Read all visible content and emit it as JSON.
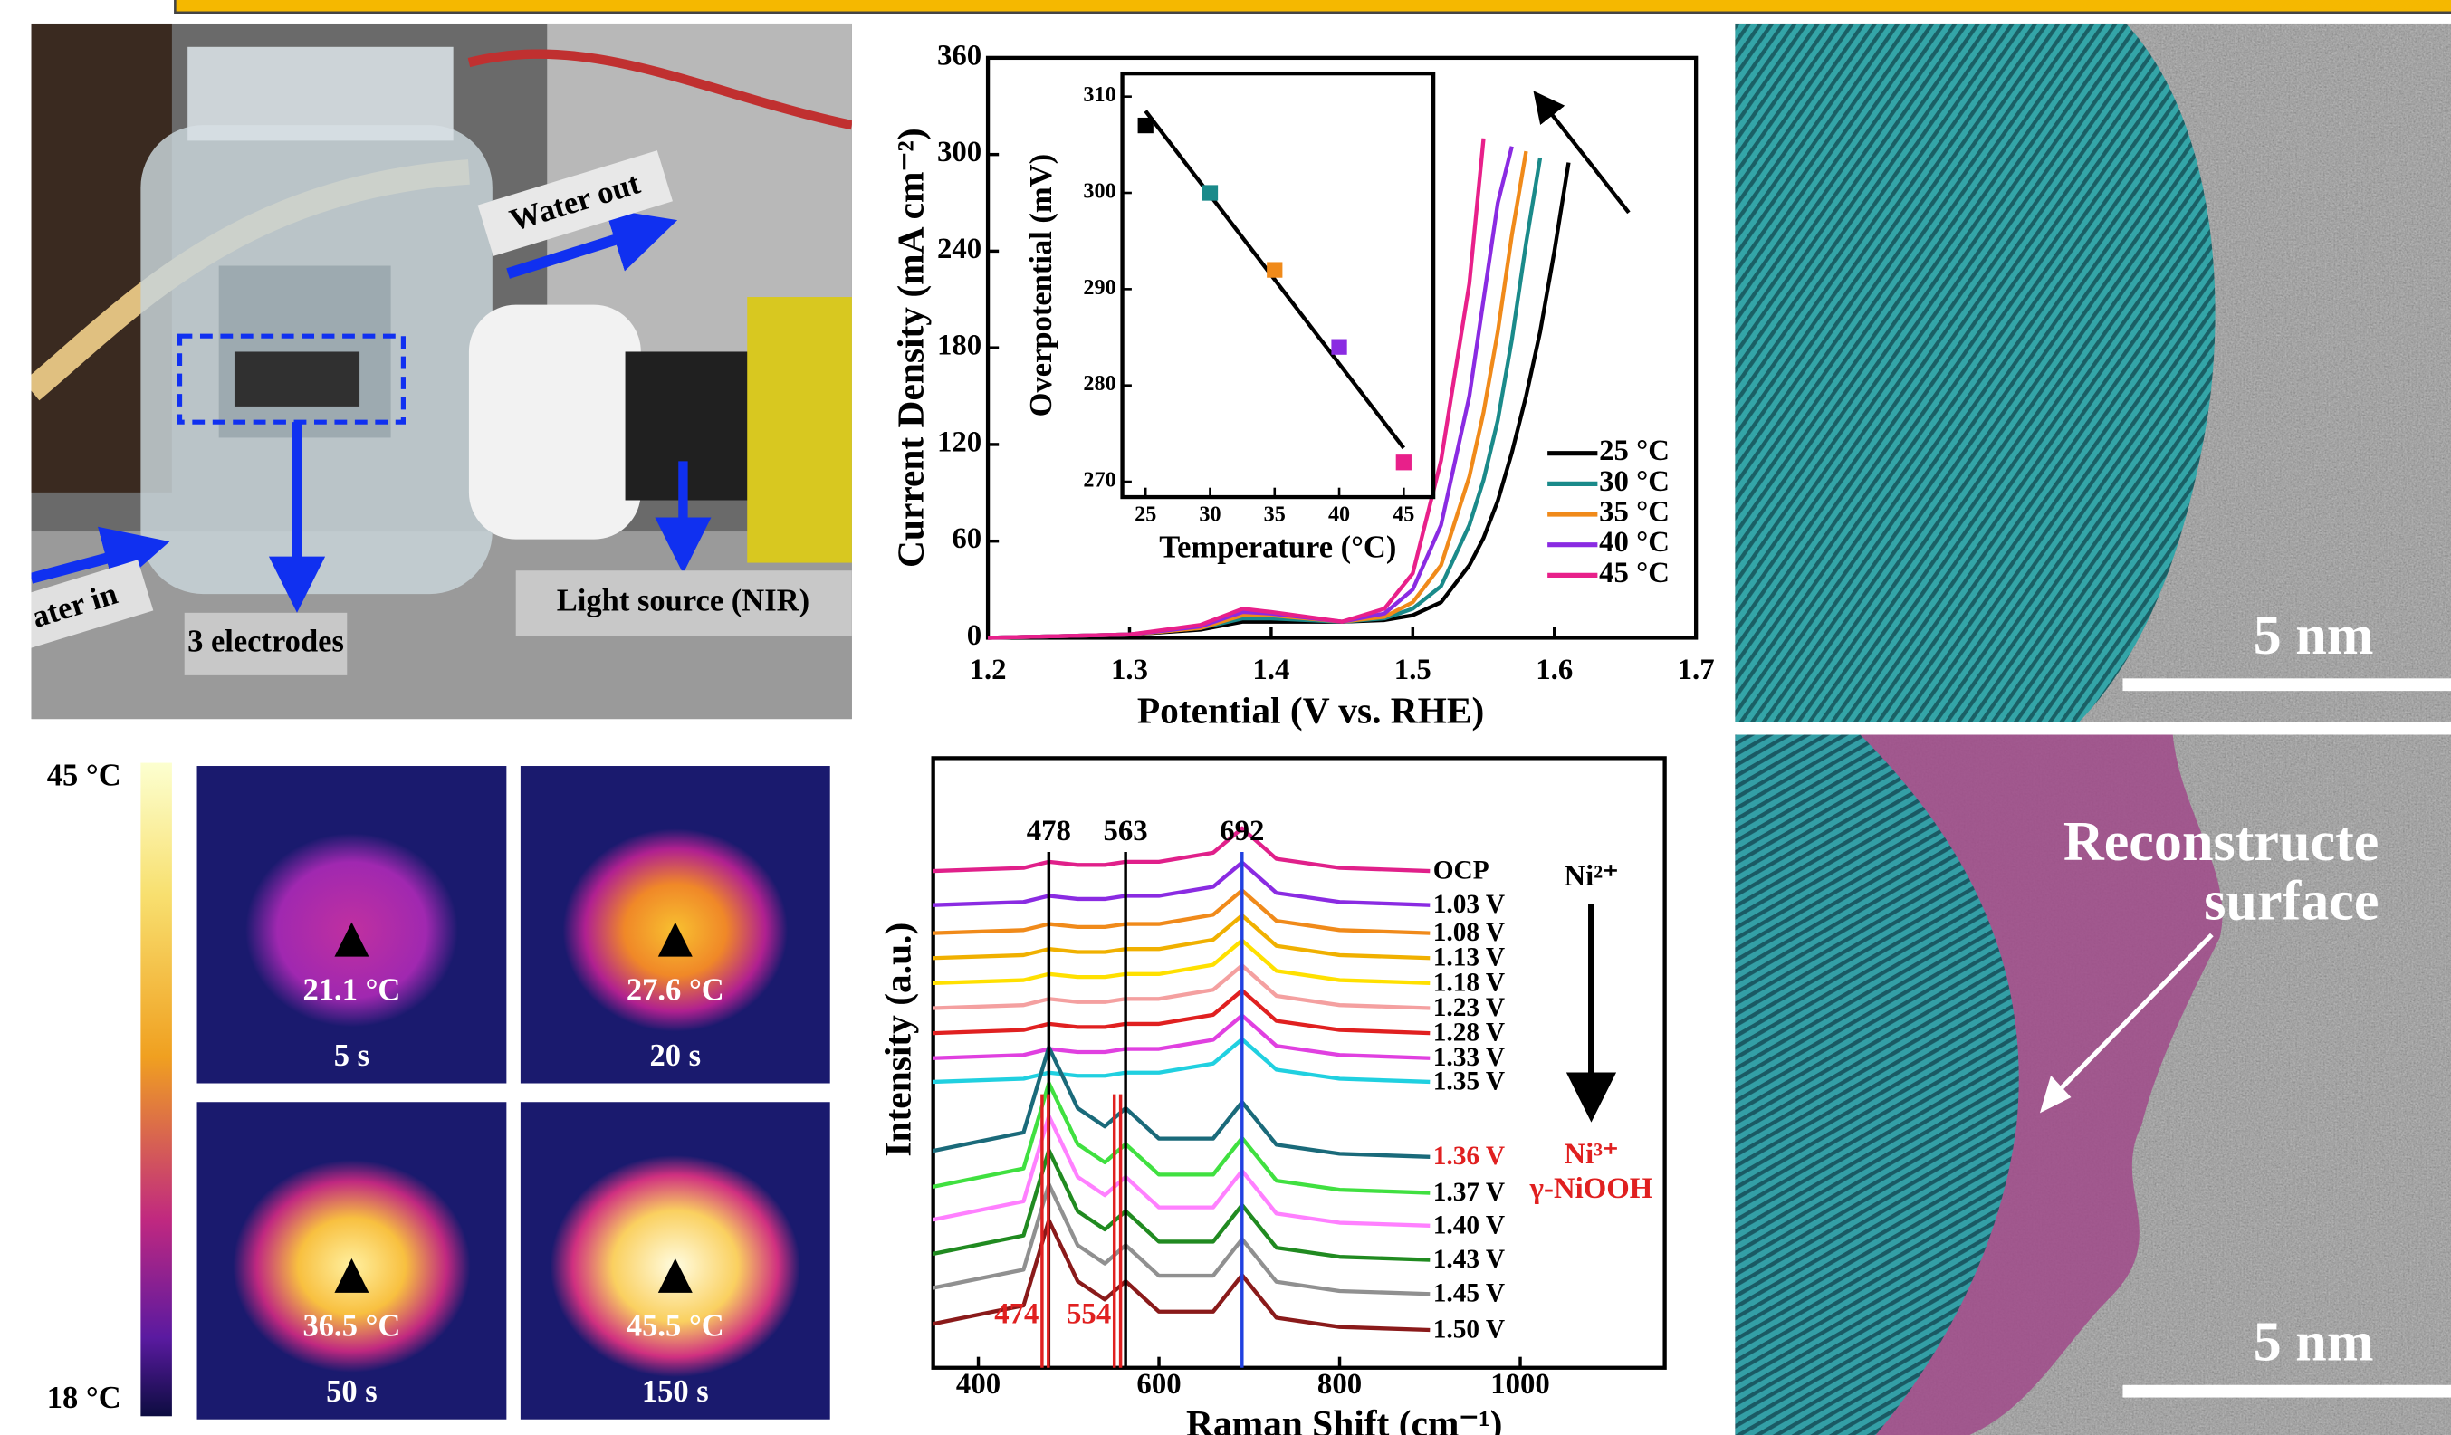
{
  "photo": {
    "labels": [
      "Water out",
      "3 electrodes",
      "Light source (NIR)",
      "ater in"
    ]
  },
  "chart_data": [
    {
      "type": "line",
      "xlabel": "Potential (V vs. RHE)",
      "ylabel": "Current Density (mA cm⁻²)",
      "x": [
        1.2,
        1.3,
        1.35,
        1.38,
        1.4,
        1.45,
        1.48,
        1.5,
        1.52,
        1.54,
        1.55,
        1.56,
        1.57,
        1.58,
        1.59,
        1.6,
        1.61
      ],
      "series": [
        {
          "name": "25 °C",
          "color": "#000000",
          "values": [
            0,
            2,
            5,
            10,
            10,
            10,
            11,
            14,
            22,
            45,
            62,
            85,
            115,
            150,
            190,
            240,
            295
          ]
        },
        {
          "name": "30 °C",
          "color": "#1a8a8a",
          "values": [
            0,
            2,
            6,
            12,
            12,
            10,
            12,
            18,
            32,
            70,
            98,
            135,
            185,
            245,
            298,
            null,
            null
          ]
        },
        {
          "name": "35 °C",
          "color": "#f08a1a",
          "values": [
            0,
            2,
            6,
            14,
            14,
            10,
            13,
            22,
            45,
            100,
            140,
            190,
            250,
            302,
            null,
            null,
            null
          ]
        },
        {
          "name": "40 °C",
          "color": "#8a2be2",
          "values": [
            0,
            2,
            7,
            16,
            15,
            10,
            15,
            30,
            70,
            150,
            210,
            270,
            305,
            null,
            null,
            null,
            null
          ]
        },
        {
          "name": "45 °C",
          "color": "#e8208a",
          "values": [
            0,
            2,
            8,
            18,
            16,
            10,
            18,
            40,
            110,
            220,
            310,
            null,
            null,
            null,
            null,
            null,
            null
          ]
        }
      ],
      "xlim": [
        1.2,
        1.7
      ],
      "ylim": [
        0,
        360
      ],
      "xticks": [
        1.2,
        1.3,
        1.4,
        1.5,
        1.6,
        1.7
      ],
      "yticks": [
        0,
        60,
        120,
        180,
        240,
        300,
        360
      ],
      "legend": "lower-right"
    },
    {
      "type": "scatter",
      "xlabel": "Temperature (°C)",
      "ylabel": "Overpotential (mV)",
      "x": [
        25,
        30,
        35,
        40,
        45
      ],
      "values": [
        307,
        300,
        292,
        284,
        272
      ],
      "colors": [
        "#000000",
        "#1a8a8a",
        "#f08a1a",
        "#8a2be2",
        "#e8208a"
      ],
      "trendline": {
        "x": [
          25,
          45
        ],
        "y": [
          308.5,
          273.5
        ]
      },
      "xlim": [
        23.2,
        47.3
      ],
      "ylim": [
        268.4,
        312.4
      ],
      "xticks": [
        25,
        30,
        35,
        40,
        45
      ],
      "yticks": [
        270,
        280,
        290,
        300,
        310
      ]
    },
    {
      "type": "line",
      "xlabel": "Raman Shift (cm⁻¹)",
      "ylabel": "Intensity (a.u.)",
      "x": [
        350,
        450,
        478,
        510,
        540,
        563,
        600,
        660,
        692,
        730,
        800,
        900
      ],
      "series": [
        {
          "name": "OCP",
          "color": "#e0208a",
          "values": [
            81.5,
            82,
            83,
            82.5,
            82.5,
            83,
            83,
            84.5,
            88.5,
            83.5,
            82,
            81.5
          ]
        },
        {
          "name": "1.03 V",
          "color": "#8a2be2",
          "values": [
            75.9,
            76.4,
            77.4,
            76.9,
            76.9,
            77.4,
            77.4,
            78.9,
            82.9,
            77.9,
            76.4,
            75.9
          ]
        },
        {
          "name": "1.08 V",
          "color": "#f08a1a",
          "values": [
            71.3,
            71.8,
            72.8,
            72.3,
            72.3,
            72.8,
            72.8,
            74.3,
            78.3,
            73.3,
            71.8,
            71.3
          ]
        },
        {
          "name": "1.13 V",
          "color": "#f0b000",
          "values": [
            67.2,
            67.7,
            68.7,
            68.2,
            68.2,
            68.7,
            68.7,
            70.2,
            74.2,
            69.2,
            67.7,
            67.2
          ]
        },
        {
          "name": "1.18 V",
          "color": "#ffe000",
          "values": [
            63.1,
            63.6,
            64.6,
            64.1,
            64.1,
            64.6,
            64.6,
            66.1,
            70.1,
            65.1,
            63.6,
            63.1
          ]
        },
        {
          "name": "1.23 V",
          "color": "#f4a0a0",
          "values": [
            59,
            59.5,
            60.5,
            60,
            60,
            60.5,
            60.5,
            62,
            66,
            61,
            59.5,
            59
          ]
        },
        {
          "name": "1.28 V",
          "color": "#e02020",
          "values": [
            54.9,
            55.4,
            56.4,
            55.9,
            55.9,
            56.4,
            56.4,
            57.9,
            61.9,
            56.9,
            55.4,
            54.9
          ]
        },
        {
          "name": "1.33 V",
          "color": "#e040e0",
          "values": [
            50.8,
            51.3,
            52.3,
            51.8,
            51.8,
            52.3,
            52.3,
            53.8,
            57.8,
            52.8,
            51.3,
            50.8
          ]
        },
        {
          "name": "1.35 V",
          "color": "#20d0e0",
          "values": [
            46.9,
            47.4,
            48.4,
            47.9,
            47.9,
            48.4,
            48.4,
            49.9,
            53.9,
            48.9,
            47.4,
            46.9
          ]
        },
        {
          "name": "1.36 V",
          "color": "#1a6a7a",
          "label_color": "#e02020",
          "values": [
            35.6,
            38.6,
            52.6,
            42.6,
            39.6,
            42.6,
            37.6,
            37.6,
            43.6,
            36.6,
            35.1,
            34.6
          ]
        },
        {
          "name": "1.37 V",
          "color": "#40e040",
          "values": [
            29.7,
            32.7,
            46.7,
            36.7,
            33.7,
            36.7,
            31.7,
            31.7,
            37.7,
            30.7,
            29.2,
            28.7
          ]
        },
        {
          "name": "1.40 V",
          "color": "#ff80ff",
          "values": [
            24.3,
            27.3,
            41.3,
            31.3,
            28.3,
            31.3,
            26.3,
            26.3,
            32.3,
            25.3,
            23.8,
            23.3
          ]
        },
        {
          "name": "1.43 V",
          "color": "#208a20",
          "values": [
            18.7,
            21.7,
            35.7,
            25.7,
            22.7,
            25.7,
            20.7,
            20.7,
            26.7,
            19.7,
            18.2,
            17.7
          ]
        },
        {
          "name": "1.45 V",
          "color": "#909090",
          "values": [
            13.1,
            16.1,
            30.1,
            20.1,
            17.1,
            20.1,
            15.1,
            15.1,
            21.1,
            14.1,
            12.6,
            12.1
          ]
        },
        {
          "name": "1.50 V",
          "color": "#8a1a1a",
          "values": [
            7.2,
            10.2,
            24.2,
            14.2,
            11.2,
            14.2,
            9.2,
            9.2,
            15.2,
            8.2,
            6.7,
            6.2
          ]
        }
      ],
      "reference_lines": [
        {
          "x": 478,
          "color": "#000000",
          "position": "top"
        },
        {
          "x": 563,
          "color": "#000000",
          "position": "top"
        },
        {
          "x": 692,
          "color": "#2040e0",
          "position": "top"
        },
        {
          "x": 474,
          "color": "#e02020",
          "position": "bottom"
        },
        {
          "x": 554,
          "color": "#e02020",
          "position": "bottom"
        }
      ],
      "annotations": {
        "start": "Ni²⁺",
        "end": [
          "Ni³⁺",
          "γ-NiOOH"
        ]
      },
      "xlim": [
        350,
        1160
      ],
      "ylim": [
        0,
        100
      ],
      "xticks": [
        400,
        600,
        800,
        1000
      ]
    }
  ],
  "thermal": {
    "scale_max": "45 °C",
    "scale_min": "18 °C",
    "frames": [
      {
        "temperature": "21.1 °C",
        "time": "5 s"
      },
      {
        "temperature": "27.6 °C",
        "time": "20 s"
      },
      {
        "temperature": "36.5 °C",
        "time": "50 s"
      },
      {
        "temperature": "45.5 °C",
        "time": "150 s"
      }
    ]
  },
  "tem": {
    "scale_bars": [
      "5 nm",
      "5 nm"
    ],
    "annotation": [
      "Reconstructe",
      "surface"
    ]
  }
}
